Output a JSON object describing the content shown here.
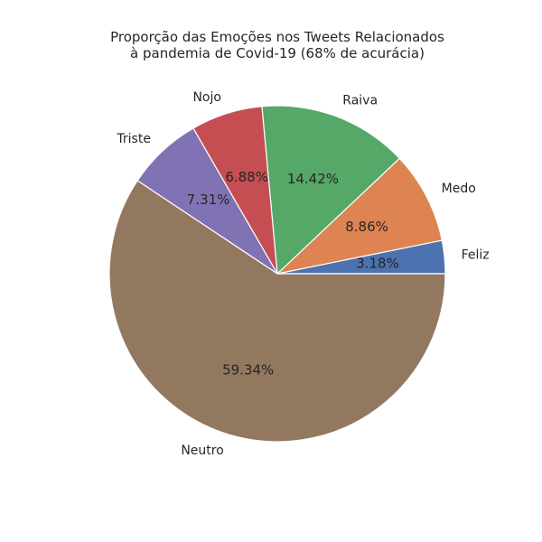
{
  "chart_data": {
    "type": "pie",
    "title_lines": [
      "Proporção das Emoções nos Tweets Relacionados",
      "à pandemia de Covid-19 (68% de acurácia)"
    ],
    "labels": [
      "Feliz",
      "Medo",
      "Raiva",
      "Nojo",
      "Triste",
      "Neutro"
    ],
    "values": [
      3.18,
      8.86,
      14.42,
      6.88,
      7.31,
      59.34
    ],
    "value_labels": [
      "3.18%",
      "8.86%",
      "14.42%",
      "6.88%",
      "7.31%",
      "59.34%"
    ],
    "colors": [
      "#4c72b0",
      "#dd8452",
      "#55a868",
      "#c44e52",
      "#8172b3",
      "#937860"
    ],
    "start_angle_deg": 0,
    "direction": "counterclockwise"
  }
}
